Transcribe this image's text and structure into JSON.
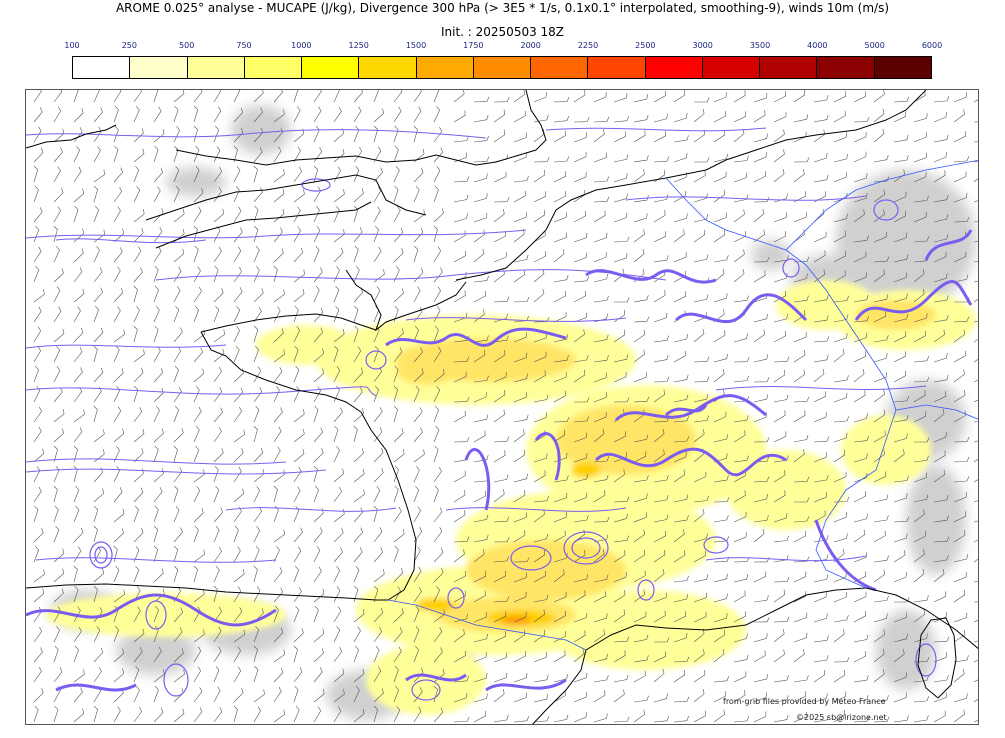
{
  "header": {
    "title": "AROME 0.025° analyse - MUCAPE (J/kg), Divergence 300 hPa (> 3E5 * 1/s, 0.1x0.1° interpolated, smoothing-9), winds 10m (m/s)",
    "init": "Init. : 20250503 18Z"
  },
  "colorbar": {
    "tick_labels": [
      "100",
      "250",
      "500",
      "750",
      "1000",
      "1250",
      "1500",
      "1750",
      "2000",
      "2250",
      "2500",
      "3000",
      "3500",
      "4000",
      "5000",
      "6000"
    ],
    "colors": [
      "#ffffff",
      "#ffffcc",
      "#ffff99",
      "#ffff66",
      "#ffff00",
      "#ffd700",
      "#ffaa00",
      "#ff8c00",
      "#ff6600",
      "#ff4500",
      "#ff0000",
      "#d70000",
      "#b00000",
      "#8b0000",
      "#5c0000"
    ]
  },
  "map": {
    "cape_colors": {
      "low": "#ffff99",
      "mid": "#ffe566",
      "high": "#ffd000",
      "peak": "#ff9900"
    },
    "divergence_color": "#7b5cf0",
    "cloud_color": "#c8c8c8",
    "coast_color": "#000000",
    "border_color": "#3355ff"
  },
  "credits": {
    "line1": "from-grib files provided by Meteo France",
    "line2": "©2025 sb@irizone.net"
  }
}
